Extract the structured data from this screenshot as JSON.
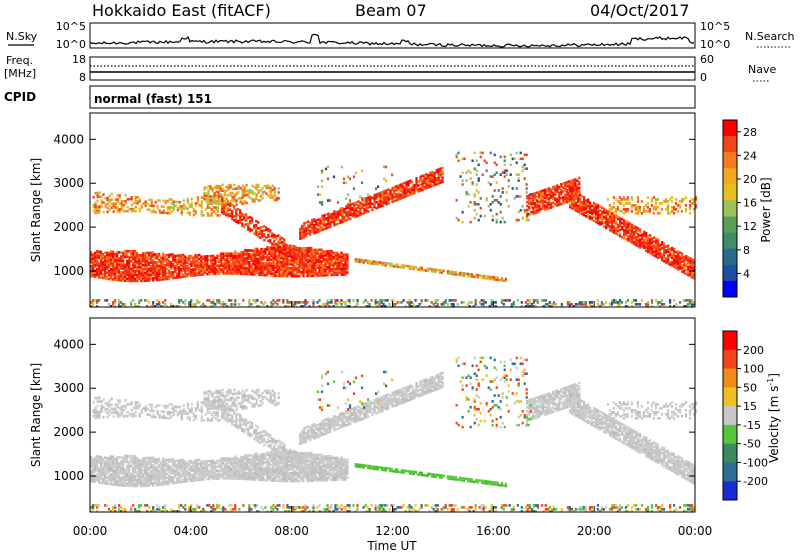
{
  "header": {
    "title": "Hokkaido East (fitACF)",
    "beam": "Beam 07",
    "date": "04/Oct/2017"
  },
  "strips": {
    "nsky": {
      "label": "N.Sky",
      "left_ticks": [
        "10^5",
        "10^0"
      ],
      "right_ticks": [
        "10^5",
        "10^0"
      ],
      "right_label": "N.Search",
      "left_range": [
        0,
        5
      ],
      "right_range": [
        0,
        5
      ]
    },
    "freq": {
      "label": "Freq.",
      "unit": "[MHz]",
      "left_ticks": [
        "18",
        "8"
      ],
      "right_ticks": [
        "60",
        "0"
      ],
      "right_label": "Nave",
      "left_range": [
        8,
        18
      ],
      "right_range": [
        0,
        60
      ]
    },
    "cpid": {
      "label": "CPID",
      "value": "normal (fast) 151"
    }
  },
  "chart_data": [
    {
      "type": "heatmap",
      "xlabel": "Time UT",
      "ylabel": "Slant Range [km]",
      "x_ticks": [
        "00:00",
        "04:00",
        "08:00",
        "12:00",
        "16:00",
        "20:00",
        "00:00"
      ],
      "x_range_hours": [
        0,
        24
      ],
      "y_ticks": [
        1000,
        2000,
        3000,
        4000
      ],
      "y_range": [
        180,
        4600
      ],
      "colorbar": {
        "label": "Power [dB]",
        "ticks": [
          "4",
          "8",
          "12",
          "16",
          "20",
          "24",
          "28"
        ],
        "range": [
          0,
          30
        ],
        "colors": [
          "#0000ff",
          "#1d4fa3",
          "#2a6b8c",
          "#3d8c6a",
          "#5aa05a",
          "#9cc25a",
          "#e5c020",
          "#f3a81e",
          "#f77b1d",
          "#f5441a",
          "#ff0000"
        ]
      }
    },
    {
      "type": "heatmap",
      "xlabel": "Time UT",
      "ylabel": "Slant Range [km]",
      "x_ticks": [
        "00:00",
        "04:00",
        "08:00",
        "12:00",
        "16:00",
        "20:00",
        "00:00"
      ],
      "x_range_hours": [
        0,
        24
      ],
      "y_ticks": [
        1000,
        2000,
        3000,
        4000
      ],
      "y_range": [
        180,
        4600
      ],
      "colorbar": {
        "label": "Velocity [m s^-1]",
        "ticks": [
          "200",
          "100",
          "50",
          "15",
          "-15",
          "-50",
          "-100",
          "-200"
        ],
        "colors": [
          "#1a2bd6",
          "#2d6e93",
          "#3a8a5c",
          "#55c73a",
          "#c8c8c8",
          "#f0c020",
          "#f28a1a",
          "#f5441a",
          "#ff0000"
        ]
      }
    }
  ]
}
